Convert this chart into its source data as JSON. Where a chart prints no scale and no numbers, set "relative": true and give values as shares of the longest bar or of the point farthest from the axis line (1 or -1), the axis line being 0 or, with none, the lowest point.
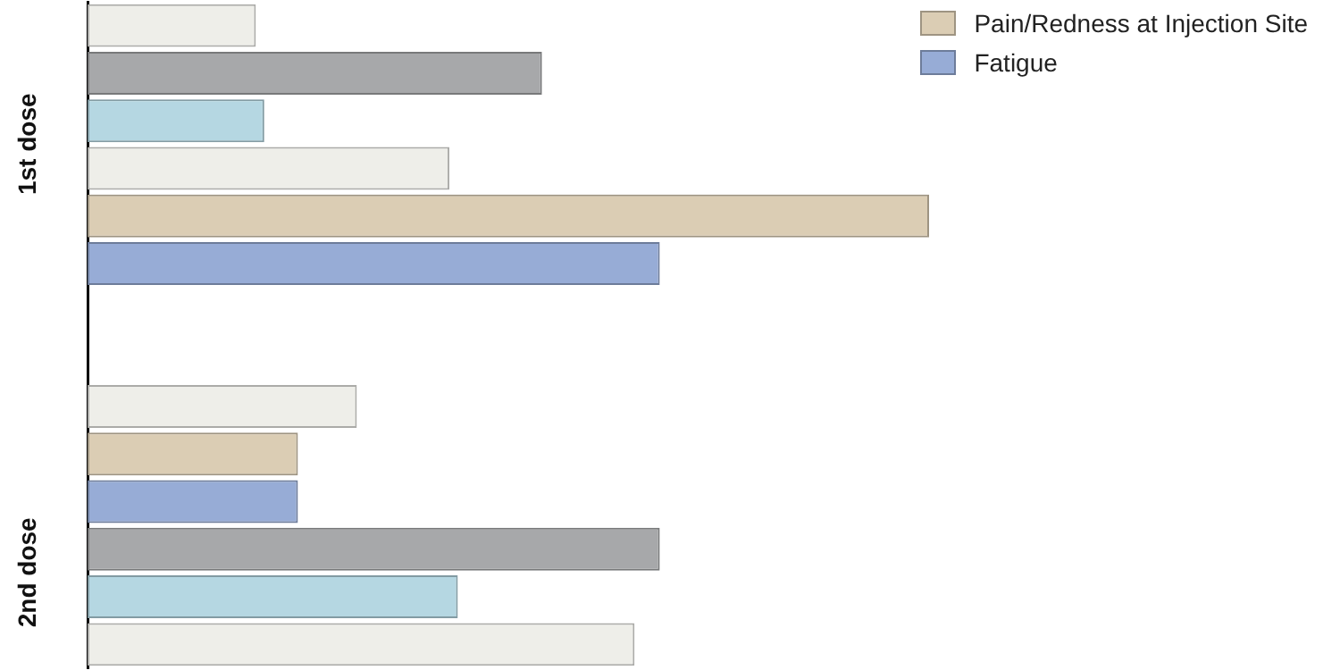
{
  "chart_data": {
    "type": "bar",
    "orientation": "horizontal",
    "stacked": true,
    "relative": true,
    "legend": "top right",
    "categories": [
      null,
      null,
      "1st dose",
      null,
      null,
      null,
      null,
      null,
      null,
      null,
      null,
      "2nd dose",
      null,
      null
    ],
    "series": [
      {
        "color": "#eeeee9",
        "values": [
          0.2,
          null,
          null,
          0.43,
          null,
          null,
          null,
          null,
          0.32,
          null,
          null,
          null,
          null,
          0.65
        ]
      },
      {
        "color": "#a7a8aa",
        "values": [
          null,
          0.54,
          null,
          null,
          null,
          null,
          null,
          null,
          null,
          null,
          null,
          0.68,
          null,
          null
        ]
      },
      {
        "color": "#b5d7e2",
        "values": [
          null,
          null,
          0.21,
          null,
          null,
          null,
          null,
          null,
          null,
          null,
          null,
          null,
          0.44,
          null
        ]
      },
      {
        "name": "Pain/Redness at Injection Site",
        "color": "#dbcdb4",
        "values": [
          null,
          null,
          null,
          null,
          1,
          null,
          null,
          null,
          null,
          0.25,
          null,
          null,
          null,
          null
        ]
      },
      {
        "name": "Fatigue",
        "color": "#97acd6",
        "values": [
          null,
          null,
          null,
          null,
          null,
          0.68,
          null,
          null,
          null,
          null,
          0.25,
          null,
          null,
          null
        ]
      }
    ]
  }
}
